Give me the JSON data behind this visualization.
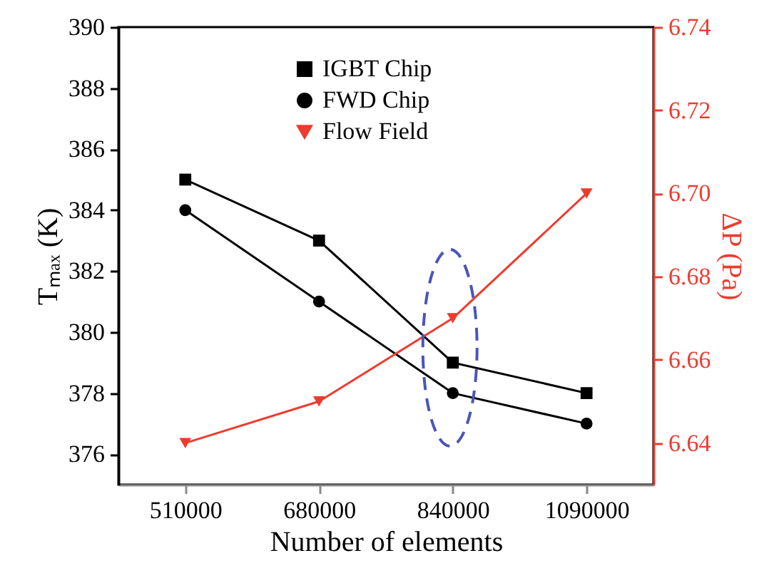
{
  "chart_data": {
    "type": "line",
    "xlabel": "Number of elements",
    "ylabel": "Tₘₐₓ (K)",
    "y2label": "ΔP (Pa)",
    "categories": [
      "510000",
      "680000",
      "840000",
      "1090000"
    ],
    "series": [
      {
        "name": "IGBT Chip",
        "color": "#000000",
        "marker": "square",
        "values": [
          385,
          383,
          379,
          378
        ]
      },
      {
        "name": "FWD Chip",
        "color": "#000000",
        "marker": "circle",
        "values": [
          384,
          381,
          378,
          377
        ]
      },
      {
        "name": "Flow Field",
        "color": "#ee3b2f",
        "marker": "triangle-down",
        "axis": "y2",
        "values": [
          6.64,
          6.65,
          6.67,
          6.7
        ]
      }
    ],
    "ylim": [
      375,
      390
    ],
    "yticks": [
      376,
      378,
      380,
      382,
      384,
      386,
      388,
      390
    ],
    "y2lim": [
      6.63,
      6.74
    ],
    "y2ticks": [
      6.64,
      6.66,
      6.68,
      {
        "value": 6.7,
        "label": "6.70"
      },
      6.72,
      6.74
    ],
    "grid": false,
    "legend": "top"
  }
}
